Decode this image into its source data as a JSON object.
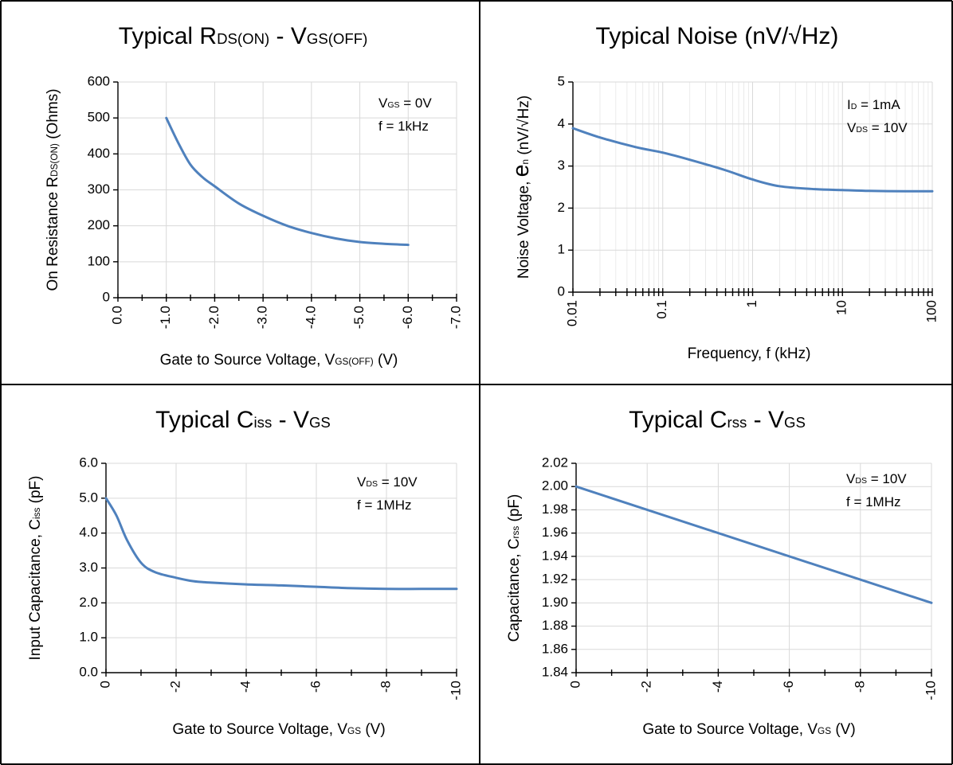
{
  "colors": {
    "line": "#4f81bd",
    "grid": "#d9d9d9",
    "border": "#000000"
  },
  "chart_data": [
    {
      "id": "rds",
      "type": "line",
      "title": {
        "main": "Typical R",
        "sub": "DS(ON)",
        "mid": " - V",
        "sub2": "GS(OFF)"
      },
      "xlabel": {
        "pre": "Gate to Source Voltage, V",
        "sub": "GS(OFF)",
        "post": " (V)"
      },
      "ylabel": {
        "pre": "On Resistance R",
        "sub": "DS(ON)",
        "post": " (Ohms)"
      },
      "annotations": [
        {
          "pre": "V",
          "sub": "GS",
          "post": " = 0V"
        },
        {
          "pre": "f = 1kHz",
          "sub": "",
          "post": ""
        }
      ],
      "x_scale": "linear",
      "xlim": [
        0,
        -7
      ],
      "ylim": [
        0,
        600
      ],
      "x_ticks": [
        0,
        -1,
        -2,
        -3,
        -4,
        -5,
        -6,
        -7
      ],
      "x_tick_labels": [
        "0.0",
        "-1.0",
        "-2.0",
        "-3.0",
        "-4.0",
        "-5.0",
        "-6.0",
        "-7.0"
      ],
      "y_ticks": [
        0,
        100,
        200,
        300,
        400,
        500,
        600
      ],
      "y_tick_labels": [
        "0",
        "100",
        "200",
        "300",
        "400",
        "500",
        "600"
      ],
      "grid": true,
      "series": [
        {
          "x": [
            -1.0,
            -1.25,
            -1.5,
            -1.75,
            -2.0,
            -2.5,
            -3.0,
            -3.5,
            -4.0,
            -4.5,
            -5.0,
            -5.5,
            -6.0
          ],
          "y": [
            500,
            430,
            370,
            335,
            310,
            262,
            228,
            200,
            180,
            165,
            155,
            150,
            147
          ]
        }
      ]
    },
    {
      "id": "noise",
      "type": "line",
      "title": {
        "main": "Typical Noise (nV/√Hz)",
        "sub": "",
        "mid": "",
        "sub2": ""
      },
      "xlabel": {
        "pre": "Frequency, f (kHz)",
        "sub": "",
        "post": ""
      },
      "ylabel": {
        "pre": "Noise Voltage, ",
        "big": "e",
        "sub": "n",
        "post": " (nV/√Hz)"
      },
      "annotations": [
        {
          "pre": "I",
          "sub": "D",
          "post": " = 1mA"
        },
        {
          "pre": "V",
          "sub": "DS",
          "post": " = 10V"
        }
      ],
      "x_scale": "log",
      "xlim": [
        0.01,
        100
      ],
      "ylim": [
        0,
        5
      ],
      "x_ticks": [
        0.01,
        0.1,
        1,
        10,
        100
      ],
      "x_tick_labels": [
        "0.01",
        "0.1",
        "1",
        "10",
        "100"
      ],
      "y_ticks": [
        0,
        1,
        2,
        3,
        4,
        5
      ],
      "y_tick_labels": [
        "0",
        "1",
        "2",
        "3",
        "4",
        "5"
      ],
      "grid": true,
      "series": [
        {
          "x": [
            0.01,
            0.02,
            0.05,
            0.1,
            0.2,
            0.5,
            1,
            2,
            5,
            10,
            20,
            50,
            100
          ],
          "y": [
            3.9,
            3.68,
            3.45,
            3.32,
            3.15,
            2.9,
            2.68,
            2.52,
            2.45,
            2.43,
            2.41,
            2.4,
            2.4
          ]
        }
      ]
    },
    {
      "id": "ciss",
      "type": "line",
      "title": {
        "main": "Typical C",
        "sub": "iss",
        "mid": " - V",
        "sub2": "GS"
      },
      "xlabel": {
        "pre": "Gate to Source Voltage, V",
        "sub": "GS",
        "post": " (V)"
      },
      "ylabel": {
        "pre": "Input Capacitance, C",
        "sub": "iss",
        "post": " (pF)"
      },
      "annotations": [
        {
          "pre": "V",
          "sub": "DS",
          "post": " = 10V"
        },
        {
          "pre": "f = 1MHz",
          "sub": "",
          "post": ""
        }
      ],
      "x_scale": "linear",
      "xlim": [
        0,
        -10
      ],
      "ylim": [
        0,
        6
      ],
      "x_ticks": [
        0,
        -2,
        -4,
        -6,
        -8,
        -10
      ],
      "x_tick_labels": [
        "0",
        "-2",
        "-4",
        "-6",
        "-8",
        "-10"
      ],
      "y_ticks": [
        0,
        1,
        2,
        3,
        4,
        5,
        6
      ],
      "y_tick_labels": [
        "0.0",
        "1.0",
        "2.0",
        "3.0",
        "4.0",
        "5.0",
        "6.0"
      ],
      "grid": true,
      "series": [
        {
          "x": [
            0,
            -0.3,
            -0.6,
            -1.0,
            -1.4,
            -2.0,
            -2.5,
            -3.0,
            -4.0,
            -5.0,
            -6.0,
            -7.0,
            -8.0,
            -9.0,
            -10.0
          ],
          "y": [
            5.0,
            4.5,
            3.8,
            3.15,
            2.88,
            2.72,
            2.62,
            2.58,
            2.53,
            2.5,
            2.46,
            2.42,
            2.4,
            2.4,
            2.4
          ]
        }
      ]
    },
    {
      "id": "crss",
      "type": "line",
      "title": {
        "main": "Typical C",
        "sub": "rss",
        "mid": " - V",
        "sub2": "GS"
      },
      "xlabel": {
        "pre": "Gate to Source Voltage, V",
        "sub": "GS",
        "post": " (V)"
      },
      "ylabel": {
        "pre": "Capacitance, C",
        "sub": "rss",
        "post": " (pF)"
      },
      "annotations": [
        {
          "pre": "V",
          "sub": "DS",
          "post": " = 10V"
        },
        {
          "pre": "f = 1MHz",
          "sub": "",
          "post": ""
        }
      ],
      "x_scale": "linear",
      "xlim": [
        0,
        -10
      ],
      "ylim": [
        1.84,
        2.02
      ],
      "x_ticks": [
        0,
        -2,
        -4,
        -6,
        -8,
        -10
      ],
      "x_tick_labels": [
        "0",
        "-2",
        "-4",
        "-6",
        "-8",
        "-10"
      ],
      "y_ticks": [
        1.84,
        1.86,
        1.88,
        1.9,
        1.92,
        1.94,
        1.96,
        1.98,
        2.0,
        2.02
      ],
      "y_tick_labels": [
        "1.84",
        "1.86",
        "1.88",
        "1.90",
        "1.92",
        "1.94",
        "1.96",
        "1.98",
        "2.00",
        "2.02"
      ],
      "grid": true,
      "series": [
        {
          "x": [
            0,
            -10
          ],
          "y": [
            2.0,
            1.9
          ]
        }
      ]
    }
  ]
}
